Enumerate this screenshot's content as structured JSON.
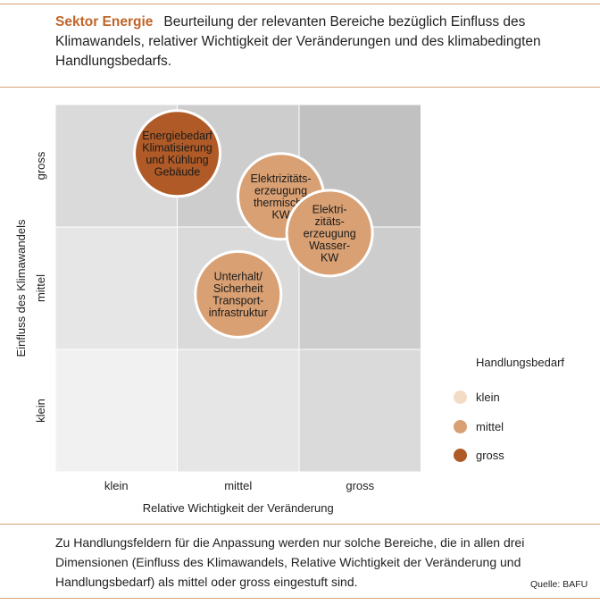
{
  "header": {
    "sector": "Sektor Energie",
    "text": "Beurteilung der relevanten Bereiche bezüglich Einfluss des Klimawandels, relativer Wichtigkeit der Veränderungen und des klimabedingten Handlungsbedarfs."
  },
  "footer": {
    "text": "Zu Handlungsfeldern für die Anpassung werden nur solche Bereiche, die in allen drei Dimensionen (Einfluss des Klimawandels, Relative Wichtigkeit der Veränderung und Handlungsbedarf) als mittel oder gross eingestuft sind.",
    "source": "Quelle: BAFU"
  },
  "colors": {
    "klein": "#f2dcc6",
    "mittel": "#d9a073",
    "gross": "#b05b27",
    "rule": "#d4a27b",
    "sector": "#c0652a"
  },
  "chart_data": {
    "type": "scatter",
    "xlabel": "Relative Wichtigkeit der Veränderung",
    "ylabel": "Einfluss des Klimawandels",
    "x_categories": [
      "klein",
      "mittel",
      "gross"
    ],
    "y_categories": [
      "klein",
      "mittel",
      "gross"
    ],
    "cell_shades": [
      [
        "#f1f1f1",
        "#e6e6e6",
        "#dadada"
      ],
      [
        "#e6e6e6",
        "#dadada",
        "#cdcdcd"
      ],
      [
        "#dadada",
        "#cdcdcd",
        "#c1c1c1"
      ]
    ],
    "legend_title": "Handlungsbedarf",
    "legend": [
      "klein",
      "mittel",
      "gross"
    ],
    "points": [
      {
        "label": [
          "Energiebedarf",
          "Klimatisierung",
          "und Kühlung",
          "Gebäude"
        ],
        "x": 1.0,
        "y": 2.6,
        "handlungsbedarf": "gross"
      },
      {
        "label": [
          "Elektrizitäts-",
          "erzeugung",
          "thermische",
          "KW"
        ],
        "x": 1.85,
        "y": 2.25,
        "handlungsbedarf": "mittel"
      },
      {
        "label": [
          "Elektri-",
          "zitäts-",
          "erzeugung",
          "Wasser-",
          "KW"
        ],
        "x": 2.25,
        "y": 1.95,
        "handlungsbedarf": "mittel"
      },
      {
        "label": [
          "Unterhalt/",
          "Sicherheit",
          "Transport-",
          "infrastruktur"
        ],
        "x": 1.5,
        "y": 1.45,
        "handlungsbedarf": "mittel"
      }
    ]
  }
}
